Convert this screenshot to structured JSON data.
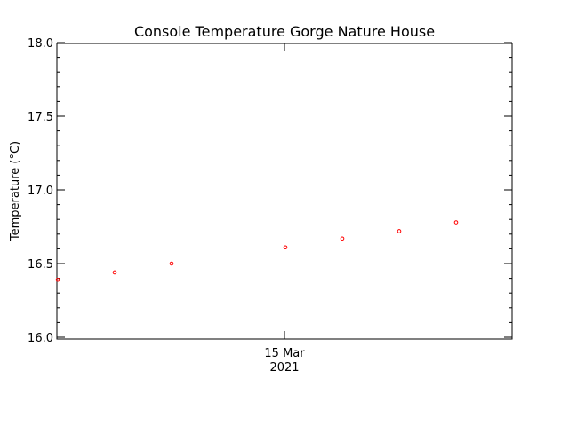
{
  "chart_data": {
    "type": "scatter",
    "title": "Console Temperature Gorge Nature House",
    "ylabel": "Temperature (°C)",
    "xlabel": "",
    "ylim": [
      16.0,
      18.0
    ],
    "y_ticks": [
      "16.0",
      "16.5",
      "17.0",
      "17.5",
      "18.0"
    ],
    "x_tick_labels": [
      {
        "value": 4.0,
        "line1": "15 Mar",
        "line2": "2021"
      }
    ],
    "xlim": [
      0,
      8
    ],
    "grid": false,
    "marker_color": "#ff0000",
    "series": [
      {
        "x": [
          0.0,
          1.0,
          2.0,
          4.0,
          5.0,
          6.0,
          7.0
        ],
        "values": [
          16.39,
          16.44,
          16.5,
          16.61,
          16.67,
          16.72,
          16.78
        ]
      }
    ]
  }
}
